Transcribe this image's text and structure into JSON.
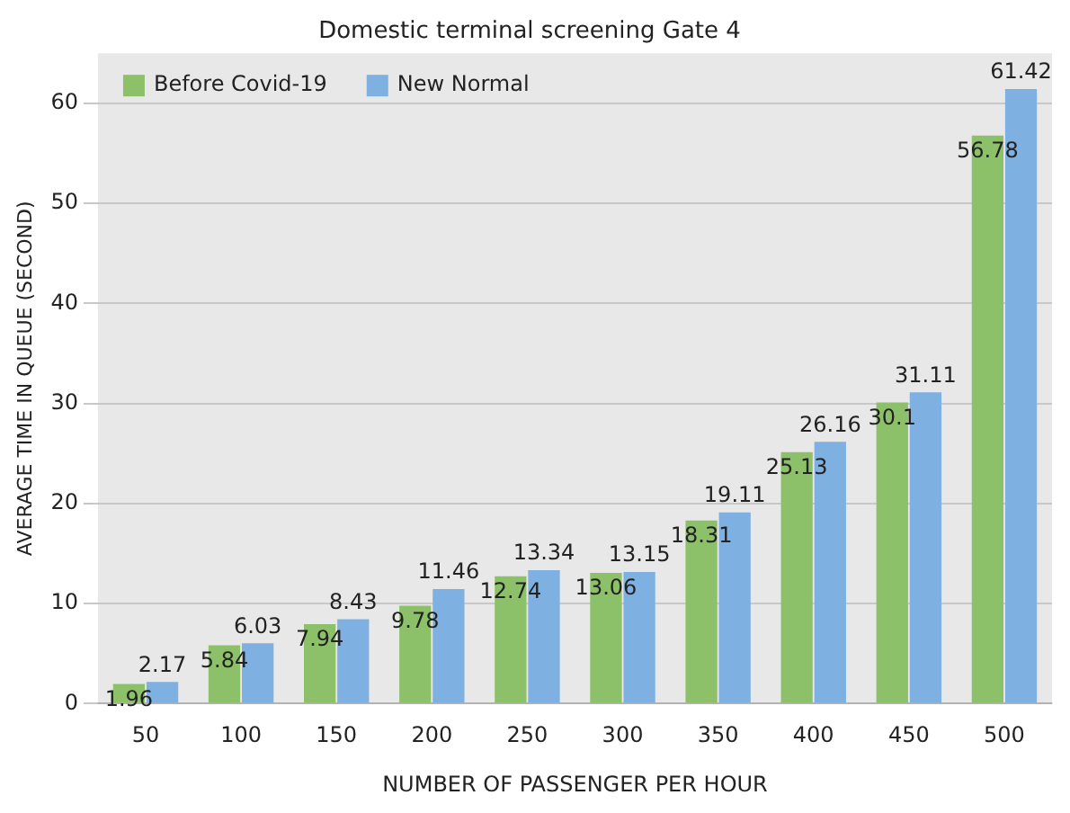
{
  "chart_data": {
    "type": "bar",
    "title": "Domestic terminal screening Gate 4",
    "xlabel": "NUMBER OF PASSENGER PER HOUR",
    "ylabel": "AVERAGE TIME IN QUEUE (SECOND)",
    "categories": [
      "50",
      "100",
      "150",
      "200",
      "250",
      "300",
      "350",
      "400",
      "450",
      "500"
    ],
    "series": [
      {
        "name": "Before Covid-19",
        "color": "#8cc16a",
        "values": [
          1.96,
          5.84,
          7.94,
          9.78,
          12.74,
          13.06,
          18.31,
          25.13,
          30.1,
          56.78
        ]
      },
      {
        "name": "New Normal",
        "color": "#7eb1e1",
        "values": [
          2.17,
          6.03,
          8.43,
          11.46,
          13.34,
          13.15,
          19.11,
          26.16,
          31.11,
          61.42
        ]
      }
    ],
    "ylim": [
      0,
      65
    ],
    "yticks": [
      0,
      10,
      20,
      30,
      40,
      50,
      60
    ],
    "grid": "y",
    "legend": "top left",
    "data_labels": true
  }
}
